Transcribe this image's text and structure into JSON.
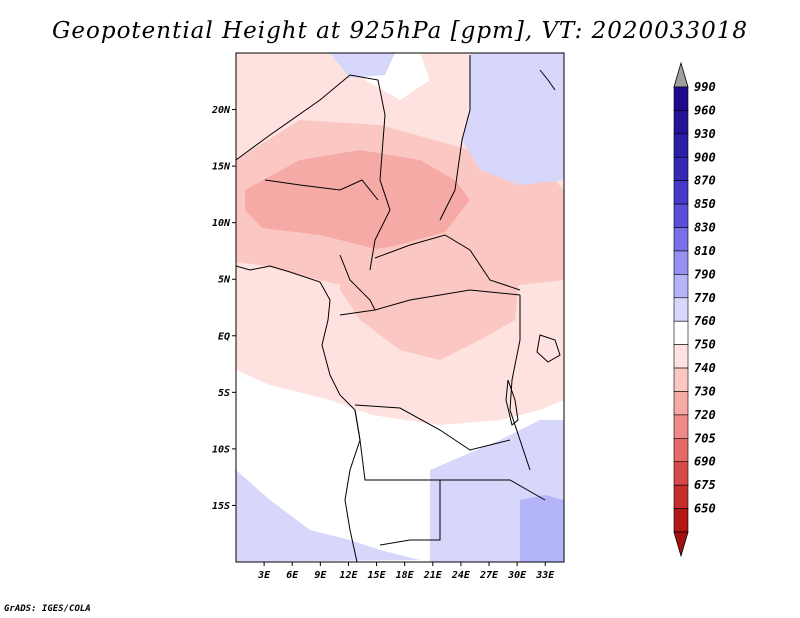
{
  "title": "Geopotential Height at 925hPa [gpm], VT: 2020033018",
  "credit": "GrADS: IGES/COLA",
  "map": {
    "lon_range": [
      0,
      35
    ],
    "lat_range": [
      -20,
      25
    ],
    "lat_ticks": [
      {
        "lat": 20,
        "label": "20N"
      },
      {
        "lat": 15,
        "label": "15N"
      },
      {
        "lat": 10,
        "label": "10N"
      },
      {
        "lat": 5,
        "label": "5N"
      },
      {
        "lat": 0,
        "label": "EQ"
      },
      {
        "lat": -5,
        "label": "5S"
      },
      {
        "lat": -10,
        "label": "10S"
      },
      {
        "lat": -15,
        "label": "15S"
      }
    ],
    "lon_ticks": [
      {
        "lon": 3,
        "label": "3E"
      },
      {
        "lon": 6,
        "label": "6E"
      },
      {
        "lon": 9,
        "label": "9E"
      },
      {
        "lon": 12,
        "label": "12E"
      },
      {
        "lon": 15,
        "label": "15E"
      },
      {
        "lon": 18,
        "label": "18E"
      },
      {
        "lon": 21,
        "label": "21E"
      },
      {
        "lon": 24,
        "label": "24E"
      },
      {
        "lon": 27,
        "label": "27E"
      },
      {
        "lon": 30,
        "label": "30E"
      },
      {
        "lon": 33,
        "label": "33E"
      }
    ]
  },
  "colorbar": {
    "levels": [
      {
        "label": "990",
        "color": "#1e0a8c"
      },
      {
        "label": "960",
        "color": "#241496"
      },
      {
        "label": "930",
        "color": "#2a1ea5"
      },
      {
        "label": "900",
        "color": "#3428b4"
      },
      {
        "label": "870",
        "color": "#4638c8"
      },
      {
        "label": "850",
        "color": "#5a50d7"
      },
      {
        "label": "830",
        "color": "#7870e6"
      },
      {
        "label": "810",
        "color": "#9690f0"
      },
      {
        "label": "790",
        "color": "#b4b4f8"
      },
      {
        "label": "770",
        "color": "#d7d7fc"
      },
      {
        "label": "760",
        "color": "#ffffff"
      },
      {
        "label": "750",
        "color": "#fde2df"
      },
      {
        "label": "740",
        "color": "#fbc7c3"
      },
      {
        "label": "730",
        "color": "#f6aaa6"
      },
      {
        "label": "720",
        "color": "#ee8a87"
      },
      {
        "label": "705",
        "color": "#e46a68"
      },
      {
        "label": "690",
        "color": "#d64a49"
      },
      {
        "label": "675",
        "color": "#c62e2e"
      },
      {
        "label": "650",
        "color": "#b21818"
      }
    ],
    "top_arrow_color": "#a0a0a0",
    "bottom_arrow_color": "#a01010"
  }
}
